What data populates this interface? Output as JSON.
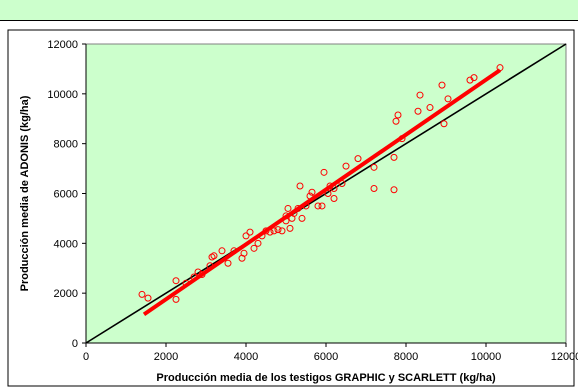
{
  "chart_data": {
    "type": "scatter",
    "title": "",
    "xlabel": "Producción media de los testigos GRAPHIC y SCARLETT (kg/ha)",
    "ylabel": "Producción media de ADONIS (kg/ha)",
    "xlim": [
      0,
      12000
    ],
    "ylim": [
      0,
      12000
    ],
    "xticks": [
      "0",
      "2000",
      "4000",
      "6000",
      "8000",
      "10000",
      "12000"
    ],
    "yticks": [
      "0",
      "2000",
      "4000",
      "6000",
      "8000",
      "10000",
      "12000"
    ],
    "grid": false,
    "legend": "none",
    "plot_background": "#ccffcc",
    "colors": {
      "points": "#ff0000",
      "regression": "#ff0000",
      "reference": "#000000"
    },
    "reference_line": {
      "x": [
        0,
        12000
      ],
      "y": [
        0,
        12000
      ]
    },
    "regression_line": {
      "x": [
        1450,
        10350
      ],
      "y": [
        1150,
        10950
      ]
    },
    "points": [
      {
        "x": 1400,
        "y": 1950
      },
      {
        "x": 1550,
        "y": 1800
      },
      {
        "x": 2250,
        "y": 1750
      },
      {
        "x": 2250,
        "y": 2500
      },
      {
        "x": 2500,
        "y": 2400
      },
      {
        "x": 2700,
        "y": 2650
      },
      {
        "x": 2800,
        "y": 2850
      },
      {
        "x": 2900,
        "y": 2750
      },
      {
        "x": 3100,
        "y": 3100
      },
      {
        "x": 3150,
        "y": 3450
      },
      {
        "x": 3200,
        "y": 3500
      },
      {
        "x": 3400,
        "y": 3700
      },
      {
        "x": 3550,
        "y": 3200
      },
      {
        "x": 3700,
        "y": 3700
      },
      {
        "x": 3900,
        "y": 3400
      },
      {
        "x": 3950,
        "y": 3600
      },
      {
        "x": 4000,
        "y": 4300
      },
      {
        "x": 4100,
        "y": 4450
      },
      {
        "x": 4200,
        "y": 3800
      },
      {
        "x": 4300,
        "y": 4000
      },
      {
        "x": 4400,
        "y": 4300
      },
      {
        "x": 4500,
        "y": 4500
      },
      {
        "x": 4600,
        "y": 4450
      },
      {
        "x": 4700,
        "y": 4500
      },
      {
        "x": 4800,
        "y": 4550
      },
      {
        "x": 4900,
        "y": 4500
      },
      {
        "x": 5000,
        "y": 4900
      },
      {
        "x": 5000,
        "y": 5100
      },
      {
        "x": 5050,
        "y": 5400
      },
      {
        "x": 5100,
        "y": 4600
      },
      {
        "x": 5150,
        "y": 5000
      },
      {
        "x": 5200,
        "y": 5200
      },
      {
        "x": 5300,
        "y": 5400
      },
      {
        "x": 5350,
        "y": 6300
      },
      {
        "x": 5400,
        "y": 5000
      },
      {
        "x": 5500,
        "y": 5500
      },
      {
        "x": 5600,
        "y": 5900
      },
      {
        "x": 5650,
        "y": 6050
      },
      {
        "x": 5800,
        "y": 5500
      },
      {
        "x": 5900,
        "y": 5500
      },
      {
        "x": 5950,
        "y": 6850
      },
      {
        "x": 6050,
        "y": 6000
      },
      {
        "x": 6100,
        "y": 6300
      },
      {
        "x": 6200,
        "y": 6200
      },
      {
        "x": 6200,
        "y": 5800
      },
      {
        "x": 6400,
        "y": 6400
      },
      {
        "x": 6500,
        "y": 7100
      },
      {
        "x": 6800,
        "y": 7400
      },
      {
        "x": 7200,
        "y": 6200
      },
      {
        "x": 7200,
        "y": 7050
      },
      {
        "x": 7700,
        "y": 6150
      },
      {
        "x": 7700,
        "y": 7450
      },
      {
        "x": 7750,
        "y": 8900
      },
      {
        "x": 7800,
        "y": 9150
      },
      {
        "x": 7900,
        "y": 8200
      },
      {
        "x": 8300,
        "y": 9300
      },
      {
        "x": 8350,
        "y": 9950
      },
      {
        "x": 8600,
        "y": 9450
      },
      {
        "x": 8900,
        "y": 10350
      },
      {
        "x": 8950,
        "y": 8800
      },
      {
        "x": 9050,
        "y": 9800
      },
      {
        "x": 9600,
        "y": 10550
      },
      {
        "x": 9700,
        "y": 10650
      },
      {
        "x": 10350,
        "y": 11050
      }
    ]
  }
}
